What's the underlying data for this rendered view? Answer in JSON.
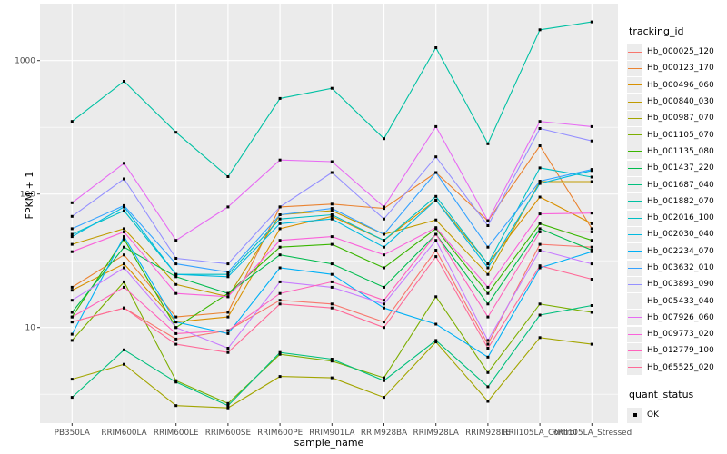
{
  "chart_data": {
    "type": "line",
    "title": "",
    "xlabel": "sample_name",
    "ylabel": "FPKM + 1",
    "y_scale": "log10",
    "ylim": [
      1.9,
      2600
    ],
    "y_major_ticks": [
      10,
      100,
      1000
    ],
    "y_minor_ticks": [
      3.1623,
      31.623,
      316.23
    ],
    "grid": "on",
    "legend_position": "right",
    "legend_title": "tracking_id",
    "quant_legend_title": "quant_status",
    "quant_status": "OK",
    "categories": [
      "PB350LA",
      "RRIM600LA",
      "RRIM600LE",
      "RRIM600SE",
      "RRIM600PE",
      "RRIM901LA",
      "RRIM928BA",
      "RRIM928LA",
      "RRIM928LE",
      "RRII105LA_Control",
      "RRII105LA_Stressed"
    ],
    "series": [
      {
        "name": "Hb_000025_120",
        "color": "#F8766D",
        "values": [
          11,
          14,
          8.2,
          9.5,
          16,
          15,
          11,
          38,
          7.5,
          42,
          40
        ]
      },
      {
        "name": "Hb_000123_170",
        "color": "#EA8331",
        "values": [
          20,
          35,
          12,
          13,
          80,
          84,
          78,
          145,
          63,
          230,
          55
        ]
      },
      {
        "name": "Hb_000496_060",
        "color": "#D89000",
        "values": [
          19,
          30,
          11,
          12,
          55,
          68,
          45,
          90,
          30,
          95,
          60
        ]
      },
      {
        "name": "Hb_000840_030",
        "color": "#C09B00",
        "values": [
          42,
          55,
          21,
          17,
          70,
          75,
          50,
          64,
          25,
          124,
          124
        ]
      },
      {
        "name": "Hb_000987_070",
        "color": "#A3A500",
        "values": [
          4.1,
          5.3,
          2.6,
          2.5,
          4.3,
          4.2,
          3.0,
          7.8,
          2.8,
          8.4,
          7.5
        ]
      },
      {
        "name": "Hb_001105_070",
        "color": "#7CAE00",
        "values": [
          8,
          22,
          4,
          2.7,
          6.3,
          5.6,
          4.2,
          17,
          4.6,
          15,
          13
        ]
      },
      {
        "name": "Hb_001135_080",
        "color": "#39B600",
        "values": [
          12,
          46,
          10,
          18,
          40,
          42,
          28,
          55,
          18,
          60,
          45
        ]
      },
      {
        "name": "Hb_001437_220",
        "color": "#00BB4E",
        "values": [
          13,
          40,
          24,
          18,
          35,
          30,
          20,
          50,
          15,
          55,
          38
        ]
      },
      {
        "name": "Hb_001687_040",
        "color": "#00BF7D",
        "values": [
          3.0,
          6.8,
          3.9,
          2.6,
          6.5,
          5.8,
          4.0,
          8.0,
          3.6,
          12.4,
          14.6
        ]
      },
      {
        "name": "Hb_001882_070",
        "color": "#00C1A3",
        "values": [
          350,
          700,
          290,
          135,
          520,
          620,
          260,
          1250,
          238,
          1700,
          1950
        ]
      },
      {
        "name": "Hb_002016_100",
        "color": "#00BFC4",
        "values": [
          50,
          75,
          25,
          25,
          65,
          70,
          45,
          96,
          30,
          157,
          134
        ]
      },
      {
        "name": "Hb_002030_040",
        "color": "#00BAE0",
        "values": [
          48,
          80,
          25,
          24,
          60,
          65,
          40,
          90,
          28,
          120,
          150
        ]
      },
      {
        "name": "Hb_002234_070",
        "color": "#00B0F6",
        "values": [
          8.9,
          48,
          11,
          9,
          28,
          25,
          14,
          10.6,
          6,
          28,
          37
        ]
      },
      {
        "name": "Hb_003632_010",
        "color": "#35A2FF",
        "values": [
          55,
          82,
          30,
          26,
          70,
          78,
          50,
          145,
          40,
          125,
          153
        ]
      },
      {
        "name": "Hb_003893_090",
        "color": "#9590FF",
        "values": [
          68,
          130,
          33,
          30,
          80,
          145,
          65,
          190,
          58,
          310,
          250
        ]
      },
      {
        "name": "Hb_005433_040",
        "color": "#C77CFF",
        "values": [
          16,
          28,
          10,
          7,
          22,
          20,
          15,
          45,
          8,
          38,
          30
        ]
      },
      {
        "name": "Hb_007926_060",
        "color": "#E76BF3",
        "values": [
          86,
          170,
          45,
          80,
          180,
          175,
          80,
          320,
          63,
          350,
          320
        ]
      },
      {
        "name": "Hb_009773_020",
        "color": "#FA62DB",
        "values": [
          37,
          52,
          18,
          17,
          45,
          48,
          35,
          56,
          20,
          71,
          72
        ]
      },
      {
        "name": "Hb_012779_100",
        "color": "#FF62BC",
        "values": [
          12,
          20,
          9,
          9.5,
          18,
          22,
          16,
          50,
          12,
          52,
          52
        ]
      },
      {
        "name": "Hb_065525_020",
        "color": "#FF6A98",
        "values": [
          11,
          14,
          7.5,
          6.5,
          15,
          14,
          10,
          34,
          7,
          29,
          23
        ]
      }
    ]
  },
  "colors": {
    "panel_bg": "#EBEBEB",
    "grid_major": "#FFFFFF",
    "grid_minor": "#FFFFFF",
    "point": "#000000",
    "tick_mark": "#333333",
    "tick_text": "#4D4D4D",
    "legend_key_bg": "#ECECEC"
  }
}
